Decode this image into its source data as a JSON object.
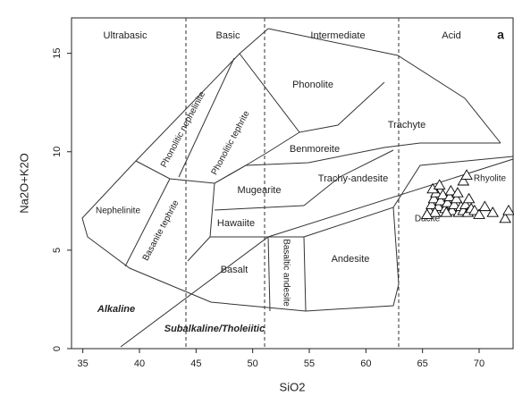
{
  "chart_data": {
    "type": "scatter",
    "xlabel": "SiO2",
    "ylabel": "Na2O+K2O",
    "xlim": [
      34,
      73
    ],
    "ylim": [
      0,
      16.8
    ],
    "xticks": [
      35,
      40,
      45,
      50,
      55,
      60,
      65,
      70
    ],
    "yticks": [
      0,
      5,
      10,
      15
    ],
    "color": "#000000",
    "annotations": [
      "Ultrabasic",
      "Basic",
      "Intermediate",
      "Acid",
      "a",
      "Phonolite",
      "Trachyte",
      "Benmoreite",
      "Phonolitic nephelinite",
      "Phonolitic tephrite",
      "Mugearite",
      "Trachy-andesite",
      "Hawaiite",
      "Nephelinite",
      "Basanite tephrite",
      "Basalt",
      "Basaltic andesite",
      "Andesite",
      "Dacite",
      "Rhyolite",
      "Alkaline",
      "Subalkaline/Tholeiitic"
    ],
    "x": [
      65.6,
      65.8,
      66.0,
      66.2,
      65.9,
      66.4,
      66.6,
      66.8,
      67.0,
      67.2,
      67.4,
      67.6,
      67.8,
      68.0,
      68.2,
      68.4,
      68.6,
      68.8,
      69.0,
      69.3,
      66.1,
      65.4,
      67.5,
      68.1,
      68.6,
      69.6,
      70.0,
      70.5,
      71.2,
      72.3,
      72.6,
      68.9,
      69.1,
      66.5,
      67.1
    ],
    "values": [
      7.0,
      7.3,
      7.6,
      7.9,
      8.1,
      7.2,
      7.5,
      7.8,
      7.1,
      7.4,
      7.7,
      7.0,
      7.3,
      7.6,
      6.9,
      7.2,
      7.0,
      7.3,
      6.9,
      7.1,
      6.9,
      6.8,
      8.0,
      7.9,
      8.5,
      7.0,
      6.8,
      7.2,
      6.9,
      6.6,
      7.0,
      8.8,
      7.6,
      8.3,
      6.9
    ]
  }
}
